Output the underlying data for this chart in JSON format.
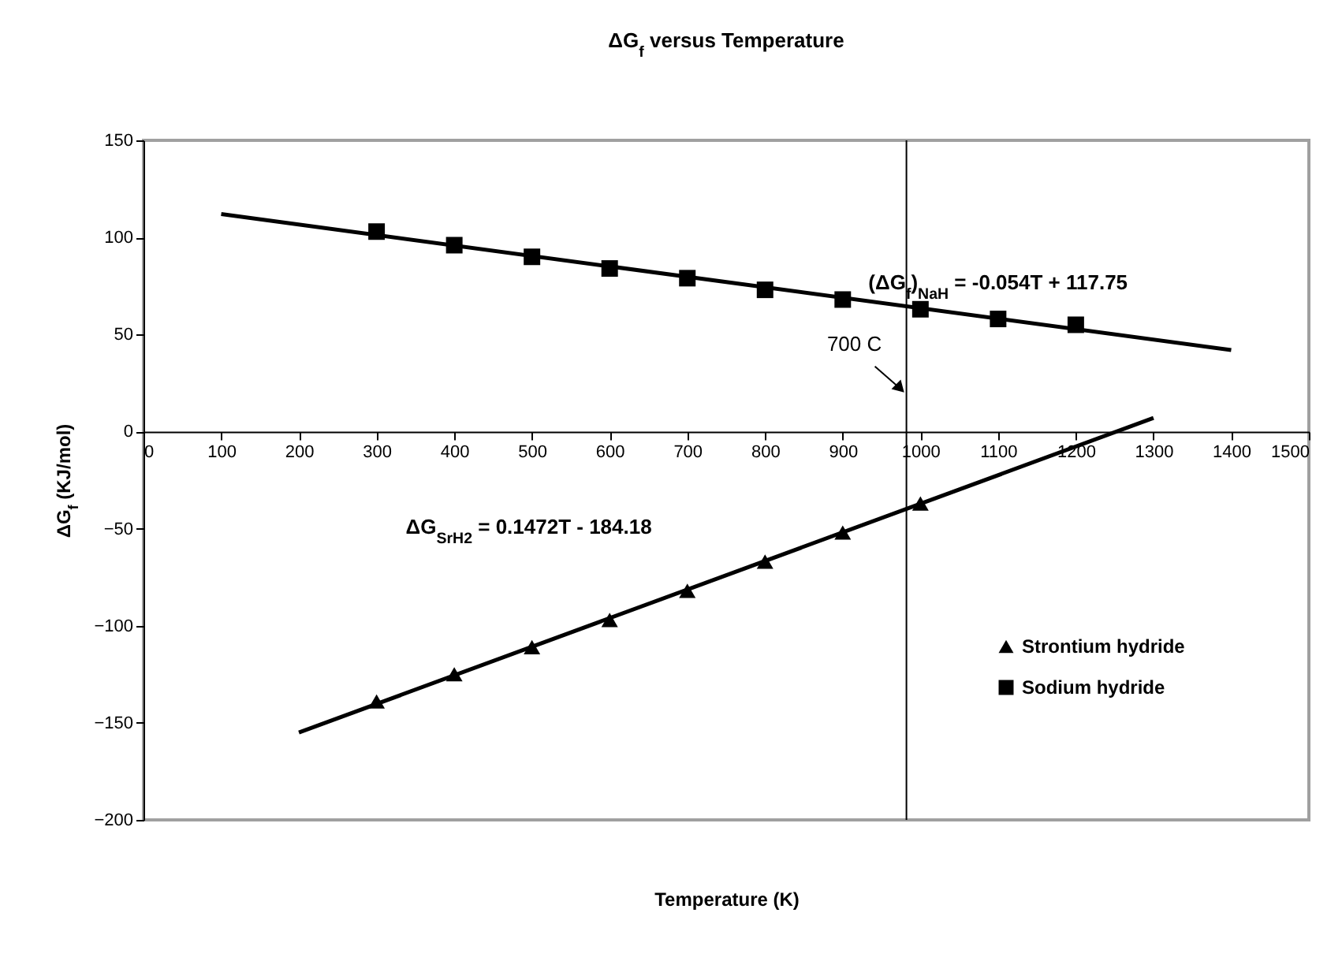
{
  "chart_data": {
    "type": "scatter",
    "title": "ΔG$_{f}$ versus Temperature",
    "xlabel": "Temperature (K)",
    "ylabel": "ΔG$_{f}$ (KJ/mol)",
    "xlim": [
      0,
      1500
    ],
    "xticks": [
      0,
      100,
      200,
      300,
      400,
      500,
      600,
      700,
      800,
      900,
      1000,
      1100,
      1200,
      1300,
      1400,
      1500
    ],
    "ylim": [
      -200,
      150
    ],
    "yticks": [
      -200,
      -150,
      -100,
      -50,
      0,
      50,
      100,
      150
    ],
    "grid": false,
    "legend": "bottom right",
    "series": [
      {
        "name": "Strontium hydride",
        "marker": "triangle",
        "color": "#000000",
        "x": [
          300,
          400,
          500,
          600,
          700,
          800,
          900,
          1000
        ],
        "values": [
          -139,
          -125,
          -111,
          -97,
          -82,
          -67,
          -52,
          -37
        ]
      },
      {
        "name": "Sodium hydride",
        "marker": "square",
        "color": "#000000",
        "x": [
          300,
          400,
          500,
          600,
          700,
          800,
          900,
          1000,
          1100,
          1200
        ],
        "values": [
          103,
          96,
          90,
          84,
          79,
          73,
          68,
          63,
          58,
          55
        ]
      },
      {
        "type": "line",
        "color": "#000000",
        "x": [
          200,
          1300
        ],
        "values": [
          -155,
          7
        ]
      },
      {
        "type": "line",
        "color": "#000000",
        "x": [
          100,
          1400
        ],
        "values": [
          112,
          42
        ]
      }
    ],
    "ref_lines": [
      {
        "axis": "x",
        "value": 982,
        "color": "#000000"
      }
    ],
    "annotations": [
      "(ΔG$_{f}$)$_{NaH}$ = -0.054T + 117.75",
      "ΔG$_{SrH2}$ = 0.1472T - 184.18",
      {
        "text": "700 C",
        "x": 982,
        "y": 19
      }
    ]
  }
}
